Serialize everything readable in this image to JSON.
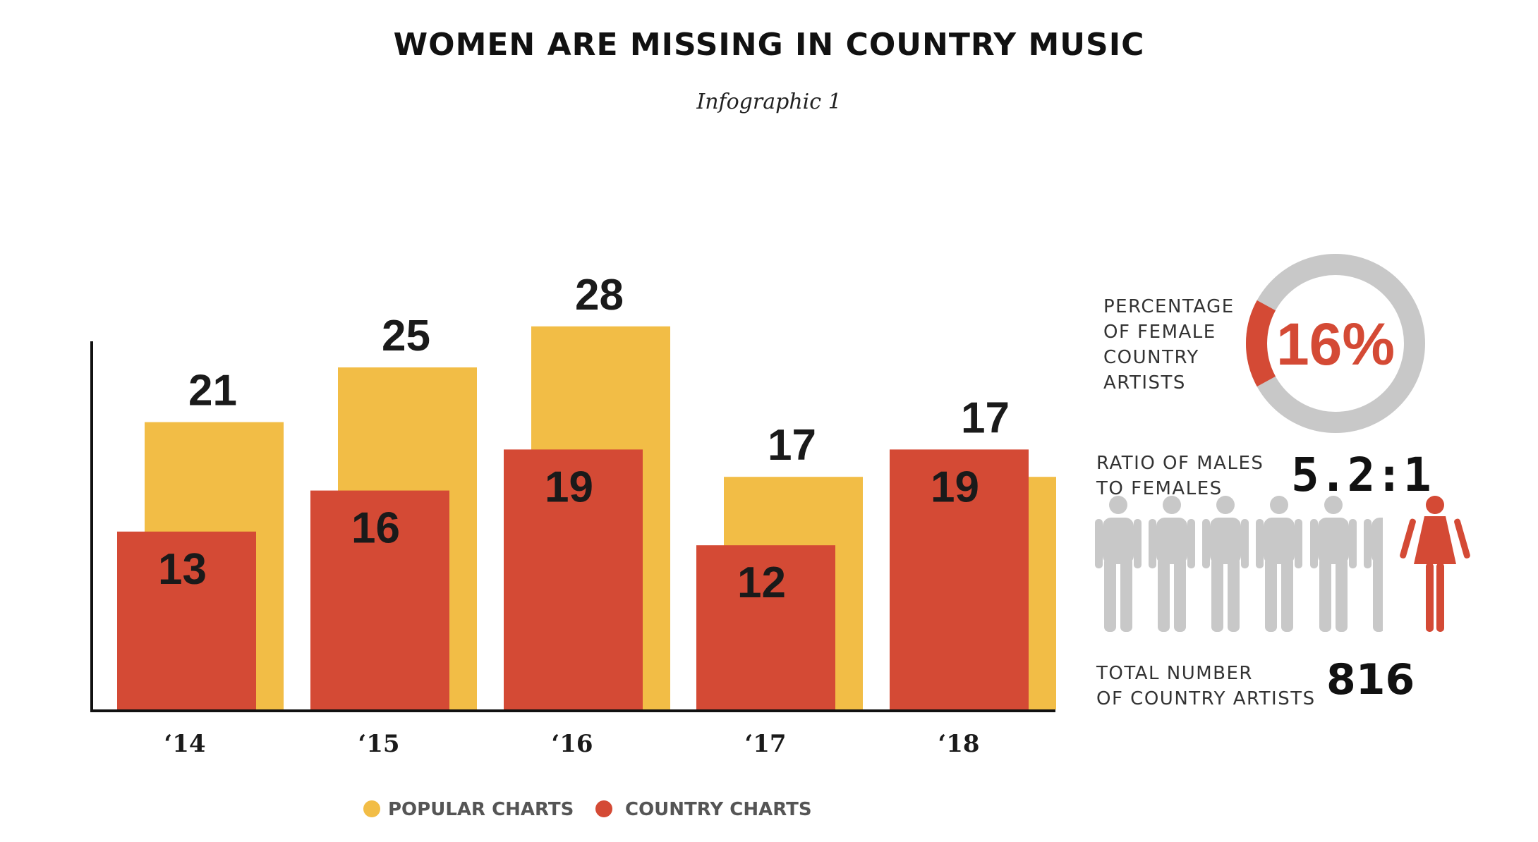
{
  "colors": {
    "popular": "#f2bd46",
    "country": "#d44a35",
    "gray": "#c8c8c8",
    "axis": "#111111"
  },
  "chart_data": {
    "type": "bar",
    "title": "WOMEN ARE MISSING IN COUNTRY MUSIC",
    "subtitle": "Infographic 1",
    "categories": [
      "‘14",
      "‘15",
      "‘16",
      "‘17",
      "‘18"
    ],
    "series": [
      {
        "name": "POPULAR CHARTS",
        "values": [
          21,
          25,
          28,
          17,
          17
        ]
      },
      {
        "name": "COUNTRY CHARTS",
        "values": [
          13,
          16,
          19,
          12,
          19
        ]
      }
    ],
    "ylim": [
      0,
      35
    ],
    "grid": false,
    "legend": "bottom"
  },
  "side": {
    "female_pct_label": [
      "PERCENTAGE",
      "OF FEMALE",
      "COUNTRY",
      "ARTISTS"
    ],
    "female_pct_value": "16%",
    "female_pct_fraction": 0.16,
    "ratio_label": [
      "RATIO OF MALES",
      "TO FEMALES"
    ],
    "ratio_value": "5.2:1",
    "ratio_males": 5.2,
    "total_label": [
      "TOTAL NUMBER",
      "OF COUNTRY ARTISTS"
    ],
    "total_value": "816",
    "icons": {
      "male": "male-person-icon",
      "female": "female-person-icon"
    }
  }
}
